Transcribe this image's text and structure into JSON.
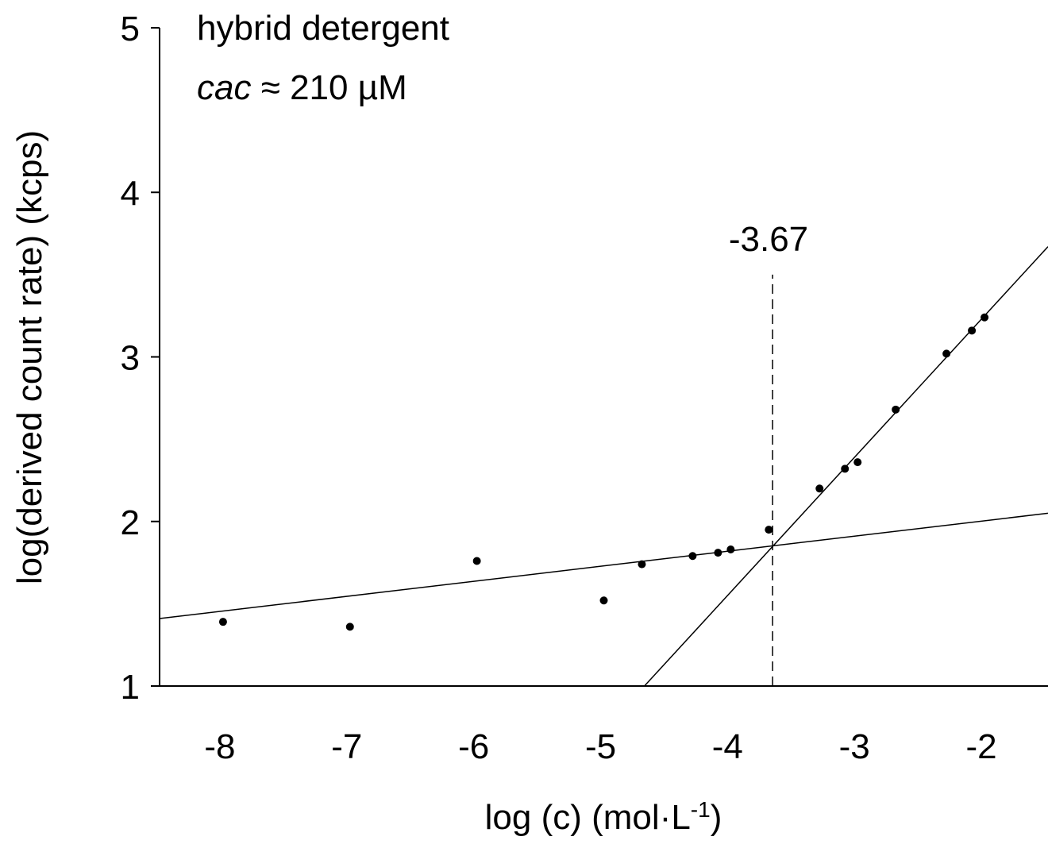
{
  "chart_data": {
    "type": "scatter",
    "title": "hybrid detergent",
    "annotation_cac_prefix": "cac",
    "annotation_cac_value": " ≈ 210 µM",
    "xlabel": "log (c) (mol·L",
    "xlabel_sup": "-1",
    "xlabel_suffix": ")",
    "ylabel": "log(derived count rate) (kcps)",
    "xlim": [
      -8.5,
      -1.5
    ],
    "ylim": [
      1,
      5
    ],
    "xticks": [
      -8,
      -7,
      -6,
      -5,
      -4,
      -3,
      -2
    ],
    "yticks": [
      1,
      2,
      3,
      4,
      5
    ],
    "grid": false,
    "points": [
      {
        "x": -8.0,
        "y": 1.39
      },
      {
        "x": -7.0,
        "y": 1.36
      },
      {
        "x": -6.0,
        "y": 1.76
      },
      {
        "x": -5.0,
        "y": 1.52
      },
      {
        "x": -4.7,
        "y": 1.74
      },
      {
        "x": -4.3,
        "y": 1.79
      },
      {
        "x": -4.1,
        "y": 1.81
      },
      {
        "x": -4.0,
        "y": 1.83
      },
      {
        "x": -3.7,
        "y": 1.95
      },
      {
        "x": -3.3,
        "y": 2.2
      },
      {
        "x": -3.1,
        "y": 2.32
      },
      {
        "x": -3.0,
        "y": 2.36
      },
      {
        "x": -2.7,
        "y": 2.68
      },
      {
        "x": -2.3,
        "y": 3.02
      },
      {
        "x": -2.1,
        "y": 3.16
      },
      {
        "x": -2.0,
        "y": 3.24
      }
    ],
    "fit_lines": [
      {
        "x": [
          -8.5,
          -1.5
        ],
        "y": [
          1.41,
          2.05
        ]
      },
      {
        "x": [
          -4.68,
          -1.5
        ],
        "y": [
          1.0,
          3.67
        ]
      }
    ],
    "intersection": {
      "x": -3.67,
      "y_top": 3.5,
      "label": "-3.67"
    }
  }
}
